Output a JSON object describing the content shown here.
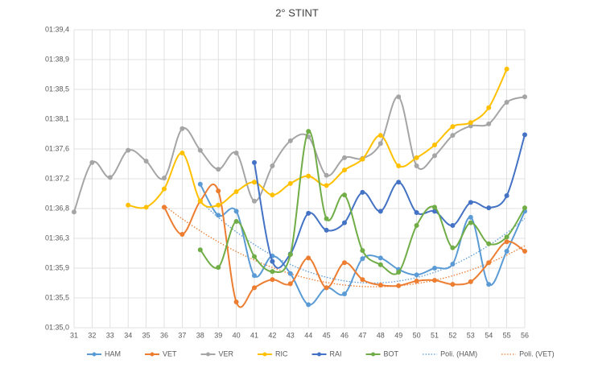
{
  "chart_data": {
    "type": "line",
    "title": "2° STINT",
    "smooth": true,
    "markers": true,
    "grid": true,
    "categories": [
      31,
      32,
      33,
      34,
      35,
      36,
      37,
      38,
      39,
      40,
      41,
      42,
      43,
      44,
      45,
      46,
      47,
      48,
      49,
      50,
      51,
      52,
      53,
      54,
      55,
      56
    ],
    "ylim": [
      95.0,
      99.4
    ],
    "yticks": [
      {
        "value": 95.0,
        "label": "01:35,0"
      },
      {
        "value": 95.44,
        "label": "01:35,5"
      },
      {
        "value": 95.88,
        "label": "01:35,9"
      },
      {
        "value": 96.32,
        "label": "01:36,3"
      },
      {
        "value": 96.76,
        "label": "01:36,8"
      },
      {
        "value": 97.2,
        "label": "01:37,2"
      },
      {
        "value": 97.64,
        "label": "01:37,6"
      },
      {
        "value": 98.08,
        "label": "01:38,1"
      },
      {
        "value": 98.52,
        "label": "01:38,5"
      },
      {
        "value": 98.96,
        "label": "01:38,9"
      },
      {
        "value": 99.4,
        "label": "01:39,4"
      }
    ],
    "series": [
      {
        "name": "HAM",
        "color": "#5b9bd5",
        "values": [
          null,
          null,
          null,
          null,
          null,
          null,
          null,
          97.12,
          96.66,
          96.72,
          95.77,
          96.06,
          95.8,
          95.34,
          95.59,
          95.5,
          96.02,
          96.03,
          95.86,
          95.78,
          95.88,
          95.94,
          96.63,
          95.64,
          96.13,
          96.72
        ]
      },
      {
        "name": "VET",
        "color": "#ed7d31",
        "values": [
          null,
          null,
          null,
          null,
          null,
          96.78,
          96.38,
          96.87,
          97.02,
          95.38,
          95.59,
          95.71,
          95.65,
          96.03,
          95.59,
          95.96,
          95.71,
          95.63,
          95.62,
          95.69,
          95.7,
          95.64,
          95.68,
          95.96,
          96.27,
          96.13
        ]
      },
      {
        "name": "VER",
        "color": "#a5a5a5",
        "values": [
          96.71,
          97.44,
          97.22,
          97.62,
          97.46,
          97.21,
          97.94,
          97.62,
          97.34,
          97.58,
          96.87,
          97.39,
          97.76,
          97.82,
          97.25,
          97.51,
          97.5,
          97.72,
          98.41,
          97.39,
          97.54,
          97.84,
          97.98,
          98.01,
          98.33,
          98.41
        ]
      },
      {
        "name": "RIC",
        "color": "#ffc000",
        "values": [
          null,
          null,
          null,
          96.81,
          96.78,
          97.05,
          97.58,
          96.87,
          96.81,
          97.01,
          97.15,
          96.96,
          97.13,
          97.24,
          97.1,
          97.33,
          97.49,
          97.84,
          97.39,
          97.51,
          97.7,
          97.97,
          98.03,
          98.25,
          98.82,
          null
        ]
      },
      {
        "name": "RAI",
        "color": "#4472c4",
        "values": [
          null,
          null,
          null,
          null,
          null,
          null,
          null,
          null,
          null,
          null,
          97.44,
          95.98,
          96.09,
          96.69,
          96.44,
          96.55,
          97.0,
          96.72,
          97.15,
          96.7,
          96.72,
          96.51,
          96.85,
          96.77,
          96.95,
          97.85
        ]
      },
      {
        "name": "BOT",
        "color": "#70ad47",
        "values": [
          null,
          null,
          null,
          null,
          null,
          null,
          null,
          96.15,
          95.89,
          96.57,
          96.05,
          95.83,
          96.08,
          97.9,
          96.61,
          96.96,
          96.14,
          95.93,
          95.82,
          96.51,
          96.78,
          96.18,
          96.55,
          96.24,
          96.34,
          96.77
        ]
      }
    ],
    "trendlines": [
      {
        "name": "Poli. (HAM)",
        "series": 0,
        "degree": 2,
        "color": "#5b9bd5"
      },
      {
        "name": "Poli. (VET)",
        "series": 1,
        "degree": 2,
        "color": "#ed7d31"
      }
    ]
  }
}
